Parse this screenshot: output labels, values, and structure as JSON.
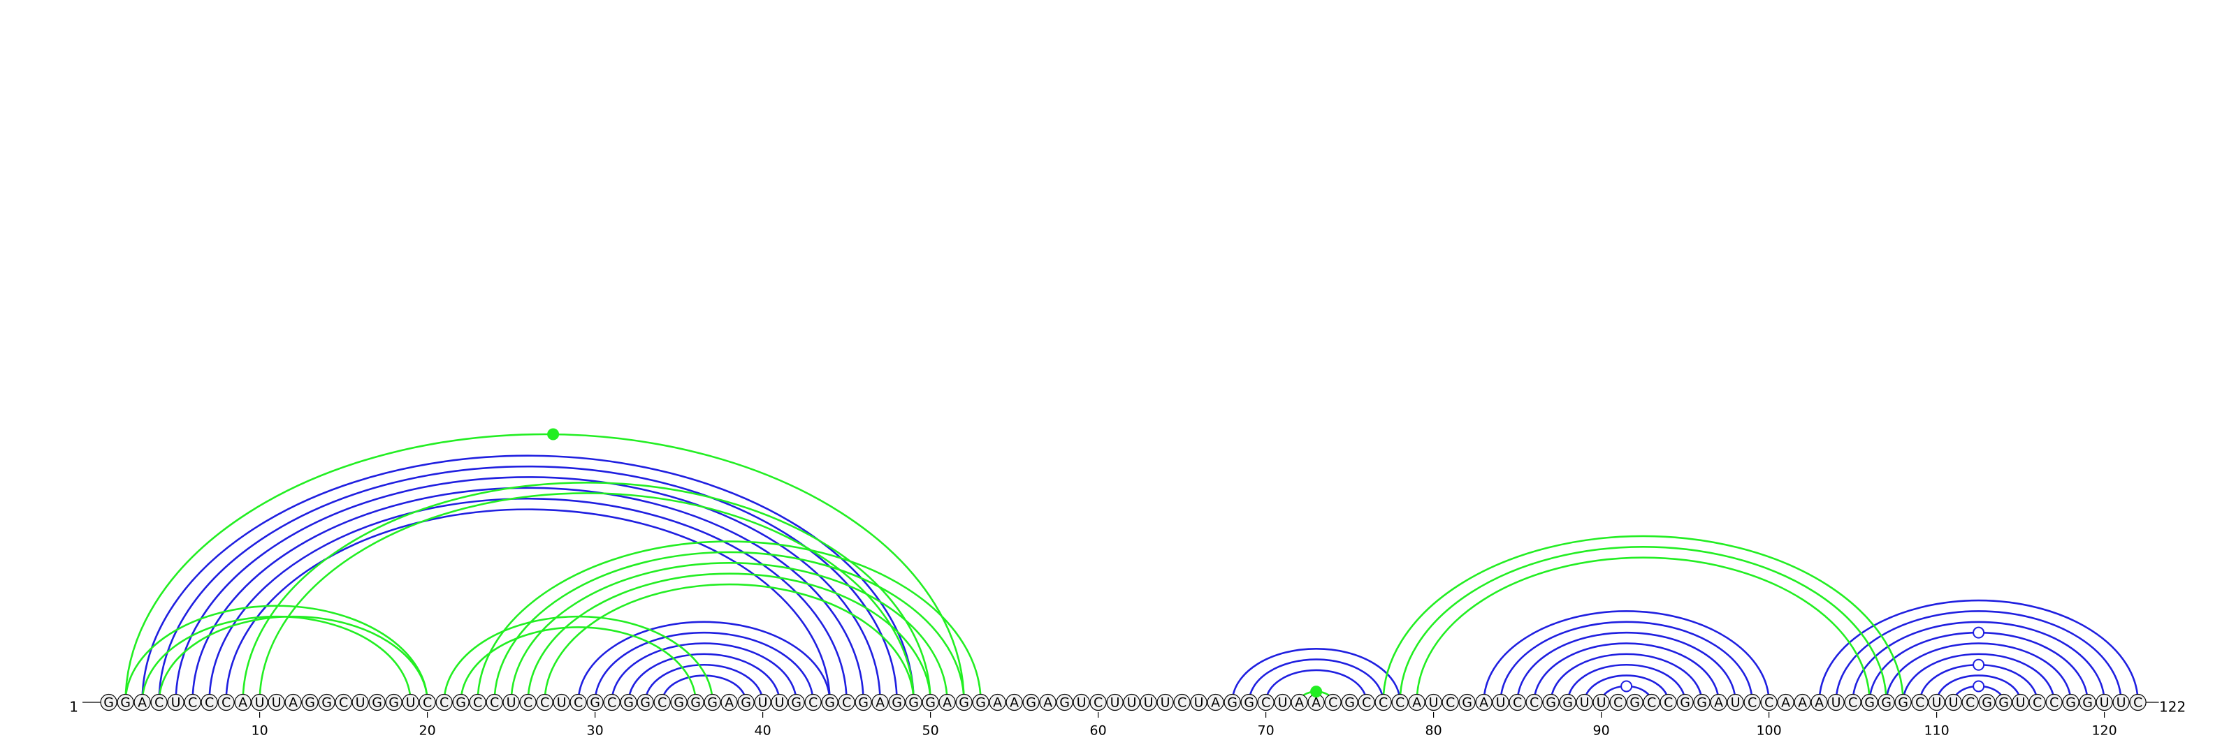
{
  "sequence": "GGACUCCCAUUAGGCUGGUCCGCCUCCUCGCGGCGGGAGUUGCGCGAGGGAGGAAGAGUCUUUUCUAGGCUAACGCCCAUCGAUCCGGUUCGCCGGAUCCAAAUCGGGCUUCGGUCCGGUUC",
  "start_label": "1",
  "end_label": "122",
  "tick_labels": [
    "10",
    "20",
    "30",
    "40",
    "50",
    "60",
    "70",
    "80",
    "90",
    "100",
    "110",
    "120"
  ],
  "tick_positions": [
    10,
    20,
    30,
    40,
    50,
    60,
    70,
    80,
    90,
    100,
    110,
    120
  ],
  "colors": {
    "blue": "#1f1fe0",
    "green": "#22ee22",
    "circle_fill": "#f2f2f2",
    "text": "#000000"
  },
  "arcs": [
    {
      "i": 3,
      "j": 49,
      "color": "blue"
    },
    {
      "i": 4,
      "j": 48,
      "color": "blue"
    },
    {
      "i": 5,
      "j": 47,
      "color": "blue"
    },
    {
      "i": 6,
      "j": 46,
      "color": "blue"
    },
    {
      "i": 7,
      "j": 45,
      "color": "blue"
    },
    {
      "i": 8,
      "j": 44,
      "color": "blue"
    },
    {
      "i": 29,
      "j": 44,
      "color": "blue"
    },
    {
      "i": 30,
      "j": 43,
      "color": "blue"
    },
    {
      "i": 31,
      "j": 42,
      "color": "blue"
    },
    {
      "i": 32,
      "j": 41,
      "color": "blue"
    },
    {
      "i": 33,
      "j": 40,
      "color": "blue"
    },
    {
      "i": 34,
      "j": 39,
      "color": "blue"
    },
    {
      "i": 68,
      "j": 78,
      "color": "blue"
    },
    {
      "i": 69,
      "j": 77,
      "color": "blue"
    },
    {
      "i": 70,
      "j": 76,
      "color": "blue"
    },
    {
      "i": 83,
      "j": 100,
      "color": "blue"
    },
    {
      "i": 84,
      "j": 99,
      "color": "blue"
    },
    {
      "i": 85,
      "j": 98,
      "color": "blue"
    },
    {
      "i": 86,
      "j": 97,
      "color": "blue"
    },
    {
      "i": 87,
      "j": 96,
      "color": "blue"
    },
    {
      "i": 88,
      "j": 95,
      "color": "blue"
    },
    {
      "i": 89,
      "j": 94,
      "color": "blue"
    },
    {
      "i": 90,
      "j": 93,
      "color": "blue"
    },
    {
      "i": 103,
      "j": 122,
      "color": "blue"
    },
    {
      "i": 104,
      "j": 121,
      "color": "blue"
    },
    {
      "i": 105,
      "j": 120,
      "color": "blue"
    },
    {
      "i": 106,
      "j": 119,
      "color": "blue"
    },
    {
      "i": 107,
      "j": 118,
      "color": "blue"
    },
    {
      "i": 108,
      "j": 117,
      "color": "blue"
    },
    {
      "i": 109,
      "j": 116,
      "color": "blue"
    },
    {
      "i": 110,
      "j": 115,
      "color": "blue"
    },
    {
      "i": 111,
      "j": 114,
      "color": "blue"
    },
    {
      "i": 2,
      "j": 52,
      "color": "green"
    },
    {
      "i": 9,
      "j": 50,
      "color": "green"
    },
    {
      "i": 10,
      "j": 49,
      "color": "green"
    },
    {
      "i": 2,
      "j": 20,
      "color": "green"
    },
    {
      "i": 3,
      "j": 19,
      "color": "green"
    },
    {
      "i": 4,
      "j": 20,
      "color": "green"
    },
    {
      "i": 21,
      "j": 37,
      "color": "green"
    },
    {
      "i": 22,
      "j": 36,
      "color": "green"
    },
    {
      "i": 23,
      "j": 53,
      "color": "green"
    },
    {
      "i": 24,
      "j": 52,
      "color": "green"
    },
    {
      "i": 25,
      "j": 51,
      "color": "green"
    },
    {
      "i": 26,
      "j": 50,
      "color": "green"
    },
    {
      "i": 27,
      "j": 49,
      "color": "green"
    },
    {
      "i": 72,
      "j": 74,
      "color": "green"
    },
    {
      "i": 77,
      "j": 108,
      "color": "green"
    },
    {
      "i": 78,
      "j": 107,
      "color": "green"
    },
    {
      "i": 79,
      "j": 106,
      "color": "green"
    }
  ],
  "markers": [
    {
      "pos": 27.5,
      "arc": "2-52",
      "style": "filled",
      "color": "green"
    },
    {
      "pos": 73,
      "arc": "72-74",
      "style": "filled",
      "color": "green"
    },
    {
      "pos": 91.5,
      "arc": "90-93",
      "style": "open",
      "color": "blue"
    },
    {
      "pos": 112.5,
      "arc": "111-114",
      "style": "open",
      "color": "blue"
    },
    {
      "pos": 112.5,
      "arc": "109-116",
      "style": "open",
      "color": "blue"
    },
    {
      "pos": 112.5,
      "arc": "106-119",
      "style": "open",
      "color": "blue"
    }
  ]
}
